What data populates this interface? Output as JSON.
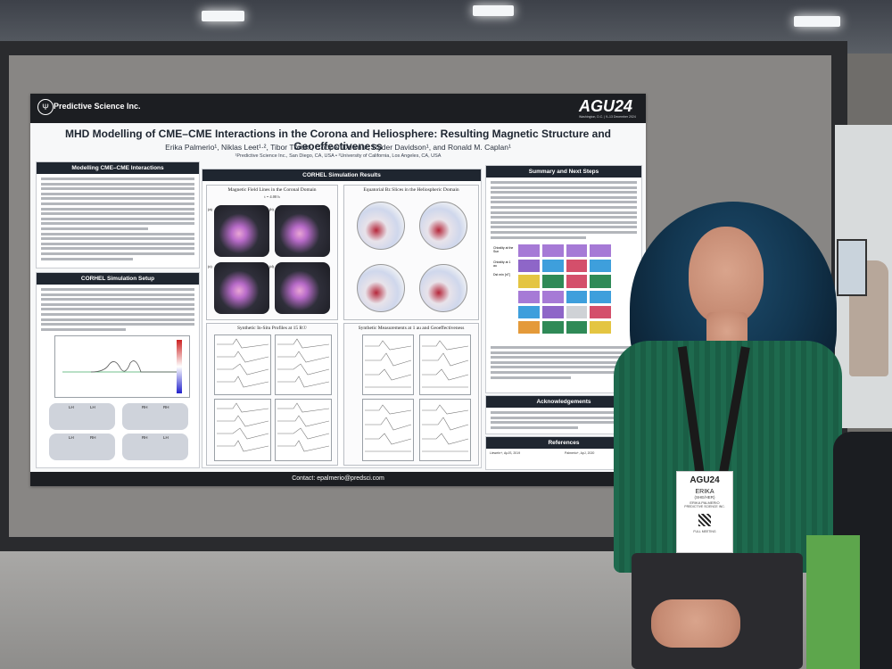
{
  "poster": {
    "org": "Predictive Science Inc.",
    "conference": "AGU24",
    "conference_sub": "Washington, D.C. | 9–13 December 2024",
    "title": "MHD Modelling of CME–CME Interactions in the Corona and Heliosphere: Resulting Magnetic Structure and Geoeffectiveness",
    "authors": "Erika Palmerio¹, Niklas Leet¹·², Tibor Török¹, Cooper Downs¹, Ryder Davidson¹, and Ronald M. Caplan¹",
    "affiliations": "¹Predictive Science Inc., San Diego, CA, USA • ²University of California, Los Angeles, CA, USA",
    "contact": "Contact: epalmerio@predsci.com",
    "sections": {
      "modelling": "Modelling CME–CME Interactions",
      "setup": "CORHEL Simulation Setup",
      "results": "CORHEL Simulation Results",
      "summary": "Summary and Next Steps",
      "acknowledgements": "Acknowledgements",
      "references": "References"
    },
    "panels": {
      "field_lines": "Magnetic Field Lines in the Coronal Domain",
      "field_lines_time": "t = 4.00 h",
      "bz_slices": "Equatorial Bz Slices in the Heliospheric Domain",
      "insitu": "Synthetic In-Situ Profiles at 15 R☉",
      "measurements": "Synthetic Measurements at 1 au and Geoeffectiveness"
    },
    "panel_letters": [
      "(a)",
      "(b)",
      "(c)",
      "(d)"
    ],
    "setup_labels": [
      "LH",
      "LH",
      "RH",
      "RH",
      "LH",
      "RH",
      "RH",
      "LH"
    ],
    "matrix_labels": [
      "Chirality at the Sun",
      "Chirality at 1 au",
      "Dst min [nT]"
    ],
    "references": [
      "Liewehr+, ApJS, 2019",
      "Palmerio+, ApJ, 2020"
    ]
  },
  "badge": {
    "event": "AGU24",
    "name": "ERIKA",
    "pronouns": "(SHE/HER)",
    "full_name": "ERIKA PALMERIO",
    "org": "PREDICTIVE SCIENCE INC.",
    "type": "FULL MEETING"
  },
  "colors": {
    "header": "#1c1e22",
    "sweater": "#1e6a4e",
    "hair": "#123650",
    "board": "#888684"
  }
}
